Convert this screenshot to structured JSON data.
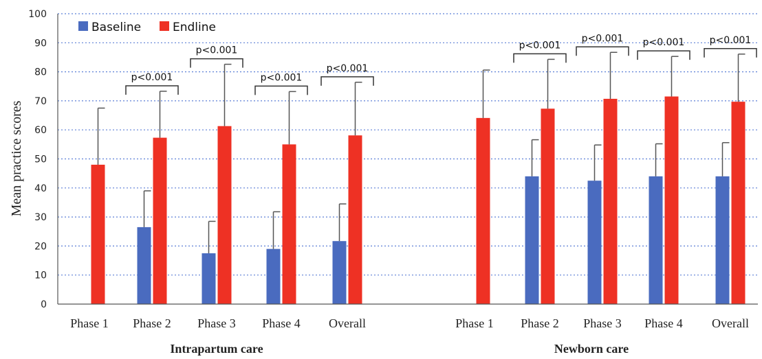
{
  "chart_data": {
    "type": "bar",
    "ylabel": "Mean practice scores",
    "ylim": [
      0,
      100
    ],
    "yticks": [
      0,
      10,
      20,
      30,
      40,
      50,
      60,
      70,
      80,
      90,
      100
    ],
    "grid": true,
    "legend_position": "top-left",
    "series_colors": {
      "Baseline": "#4a6bbf",
      "Endline": "#ee3124"
    },
    "legend": [
      {
        "name": "Baseline",
        "color": "#4a6bbf"
      },
      {
        "name": "Endline",
        "color": "#ee3124"
      }
    ],
    "groups": [
      {
        "label": "Intrapartum care",
        "categories": [
          {
            "label": "Phase 1",
            "baseline": null,
            "baseline_err": null,
            "endline": 48,
            "endline_err": 19.5,
            "pvalue": ""
          },
          {
            "label": "Phase 2",
            "baseline": 26.5,
            "baseline_err": 12.5,
            "endline": 57.3,
            "endline_err": 16,
            "pvalue": "p<0.001"
          },
          {
            "label": "Phase 3",
            "baseline": 17.5,
            "baseline_err": 11,
            "endline": 61.3,
            "endline_err": 21.3,
            "pvalue": "p<0.001"
          },
          {
            "label": "Phase 4",
            "baseline": 19,
            "baseline_err": 12.8,
            "endline": 55,
            "endline_err": 18.2,
            "pvalue": "p<0.001"
          },
          {
            "label": "Overall",
            "baseline": 21.7,
            "baseline_err": 12.8,
            "endline": 58.1,
            "endline_err": 18.3,
            "pvalue": "p<0.001"
          }
        ]
      },
      {
        "label": "Newborn care",
        "categories": [
          {
            "label": "Phase 1",
            "baseline": null,
            "baseline_err": null,
            "endline": 64.1,
            "endline_err": 16.5,
            "pvalue": ""
          },
          {
            "label": "Phase 2",
            "baseline": 44,
            "baseline_err": 12.6,
            "endline": 67.3,
            "endline_err": 17,
            "pvalue": "p<0.001"
          },
          {
            "label": "Phase 3",
            "baseline": 42.5,
            "baseline_err": 12.3,
            "endline": 70.7,
            "endline_err": 16,
            "pvalue": "p<0.001"
          },
          {
            "label": "Phase 4",
            "baseline": 44,
            "baseline_err": 11.2,
            "endline": 71.5,
            "endline_err": 13.8,
            "pvalue": "p<0.001"
          },
          {
            "label": "Overall",
            "baseline": 44,
            "baseline_err": 11.6,
            "endline": 69.7,
            "endline_err": 16.4,
            "pvalue": "p<0.001"
          }
        ]
      }
    ]
  }
}
